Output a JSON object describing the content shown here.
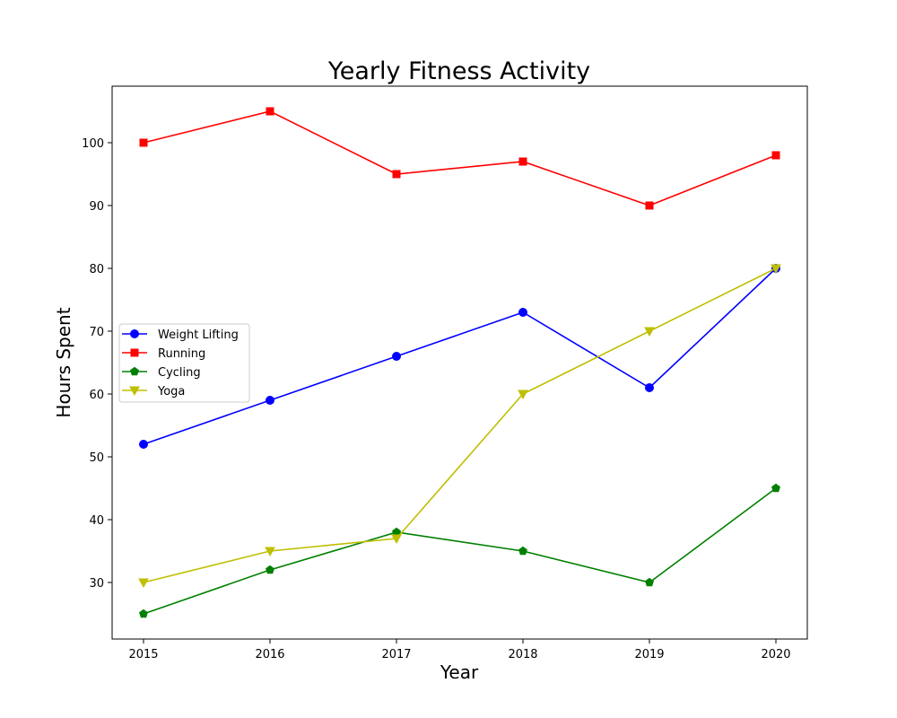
{
  "chart_data": {
    "type": "line",
    "title": "Yearly Fitness Activity",
    "xlabel": "Year",
    "ylabel": "Hours Spent",
    "x": [
      "2015",
      "2016",
      "2017",
      "2018",
      "2019",
      "2020"
    ],
    "y_ticks": [
      30,
      40,
      50,
      60,
      70,
      80,
      90,
      100
    ],
    "ylim": [
      21,
      109
    ],
    "grid": false,
    "legend_position": "center-left",
    "series": [
      {
        "name": "Weight Lifting",
        "values": [
          52,
          59,
          66,
          73,
          61,
          80
        ],
        "color": "#0000ff",
        "marker": "circle"
      },
      {
        "name": "Running",
        "values": [
          100,
          105,
          95,
          97,
          90,
          98
        ],
        "color": "#ff0000",
        "marker": "square"
      },
      {
        "name": "Cycling",
        "values": [
          25,
          32,
          38,
          35,
          30,
          45
        ],
        "color": "#008000",
        "marker": "pentagon"
      },
      {
        "name": "Yoga",
        "values": [
          30,
          35,
          37,
          60,
          70,
          80
        ],
        "color": "#bfbf00",
        "marker": "triangle-down"
      }
    ]
  }
}
